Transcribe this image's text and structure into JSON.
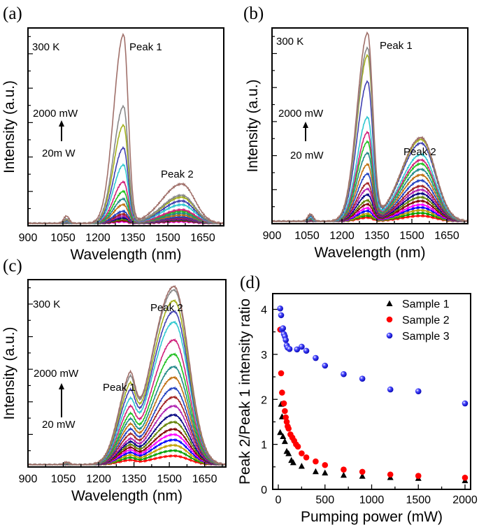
{
  "panels": [
    {
      "label": "(a)",
      "xlabel": "Wavelength (nm)",
      "ylabel": "Intensity (a.u.)",
      "xlim": [
        900,
        1740
      ],
      "ylim": [
        0,
        1.05
      ],
      "xticks": [
        "900",
        "1050",
        "1200",
        "1350",
        "1500",
        "1650"
      ],
      "annotations": {
        "temp": "300 K",
        "peak1": "Peak 1",
        "peak2": "Peak 2",
        "power_high": "2000 mW",
        "power_low": "20m W"
      },
      "peak1_nm": 1310,
      "peak2_nm": 1560,
      "curves_peak1": [
        1.0,
        0.62,
        0.52,
        0.4,
        0.31,
        0.22,
        0.17,
        0.13,
        0.1,
        0.065,
        0.05,
        0.04,
        0.03,
        0.022,
        0.015,
        0.01
      ],
      "curves_peak2": [
        0.21,
        0.15,
        0.14,
        0.12,
        0.1,
        0.073,
        0.065,
        0.055,
        0.045,
        0.035,
        0.03,
        0.026,
        0.022,
        0.018,
        0.014,
        0.01
      ]
    },
    {
      "label": "(b)",
      "xlabel": "Wavelength (nm)",
      "ylabel": "Intensity (a.u.)",
      "xlim": [
        900,
        1740
      ],
      "ylim": [
        0,
        1.05
      ],
      "xticks": [
        "900",
        "1050",
        "1200",
        "1350",
        "1500",
        "1650"
      ],
      "annotations": {
        "temp": "300 K",
        "peak1": "Peak 1",
        "peak2": "Peak 2",
        "power_high": "2000 mW",
        "power_low": "20 mW"
      },
      "peak1_nm": 1310,
      "peak2_nm": 1540,
      "curves_peak1": [
        1.0,
        0.92,
        0.88,
        0.74,
        0.55,
        0.47,
        0.42,
        0.36,
        0.3,
        0.25,
        0.2,
        0.17,
        0.14,
        0.11,
        0.09,
        0.07,
        0.055,
        0.04,
        0.03,
        0.02
      ],
      "curves_peak2": [
        0.45,
        0.45,
        0.44,
        0.42,
        0.36,
        0.33,
        0.31,
        0.28,
        0.25,
        0.22,
        0.19,
        0.17,
        0.15,
        0.13,
        0.11,
        0.09,
        0.075,
        0.06,
        0.045,
        0.03
      ]
    },
    {
      "label": "(c)",
      "xlabel": "Wavelength (nm)",
      "ylabel": "Intensity (a.u.)",
      "xlim": [
        900,
        1740
      ],
      "ylim": [
        0,
        1.05
      ],
      "xticks": [
        "900",
        "1050",
        "1200",
        "1350",
        "1500",
        "1650"
      ],
      "annotations": {
        "temp": "300 K",
        "peak1": "Peak 1",
        "peak2": "Peak 2",
        "power_high": "2000 mW",
        "power_low": "20 mW"
      },
      "peak1_nm": 1330,
      "peak2_nm": 1520,
      "curves_peak1": [
        0.38,
        0.36,
        0.33,
        0.3,
        0.26,
        0.23,
        0.2,
        0.18,
        0.16,
        0.14,
        0.12,
        0.1,
        0.09,
        0.08,
        0.07,
        0.06,
        0.05,
        0.04,
        0.03,
        0.02
      ],
      "curves_peak2": [
        1.0,
        0.98,
        0.92,
        0.86,
        0.8,
        0.7,
        0.62,
        0.55,
        0.49,
        0.43,
        0.38,
        0.33,
        0.28,
        0.24,
        0.2,
        0.17,
        0.14,
        0.11,
        0.08,
        0.05
      ]
    }
  ],
  "chart_data": {
    "type": "scatter",
    "label": "(d)",
    "xlabel": "Pumping power (mW)",
    "ylabel": "Peak 2/Peak 1 intensity ratio",
    "xlim": [
      -60,
      2060
    ],
    "ylim": [
      0,
      4.35
    ],
    "xticks": [
      "0",
      "500",
      "1000",
      "1500",
      "2000"
    ],
    "yticks": [
      "0",
      "1",
      "2",
      "3",
      "4"
    ],
    "legend": "top-right",
    "series": [
      {
        "name": "Sample 1",
        "marker": "triangle",
        "color": "#000000",
        "x": [
          20,
          30,
          40,
          50,
          70,
          90,
          110,
          140,
          160,
          250,
          400,
          500,
          700,
          900,
          1200,
          1500,
          2000
        ],
        "y": [
          1.27,
          1.9,
          1.62,
          1.18,
          1.07,
          0.85,
          0.8,
          0.65,
          0.6,
          0.52,
          0.4,
          0.37,
          0.32,
          0.3,
          0.27,
          0.25,
          0.2
        ]
      },
      {
        "name": "Sample 2",
        "marker": "circle",
        "color": "#ff0000",
        "x": [
          20,
          30,
          40,
          60,
          70,
          80,
          90,
          100,
          110,
          130,
          150,
          170,
          190,
          210,
          250,
          300,
          400,
          500,
          700,
          900,
          1200,
          1500,
          2000
        ],
        "y": [
          3.55,
          2.58,
          2.15,
          1.91,
          1.74,
          1.6,
          1.5,
          1.4,
          1.35,
          1.22,
          1.15,
          1.08,
          1.0,
          0.95,
          0.8,
          0.71,
          0.62,
          0.54,
          0.44,
          0.39,
          0.33,
          0.3,
          0.26
        ]
      },
      {
        "name": "Sample 3",
        "marker": "sphere",
        "color": "#1a1aff",
        "x": [
          20,
          30,
          40,
          50,
          60,
          70,
          80,
          90,
          100,
          120,
          200,
          250,
          300,
          400,
          500,
          700,
          900,
          1200,
          1500,
          2000
        ],
        "y": [
          4.02,
          3.87,
          3.55,
          3.58,
          3.45,
          3.4,
          3.32,
          3.2,
          3.15,
          3.12,
          3.11,
          3.17,
          3.08,
          2.92,
          2.75,
          2.56,
          2.46,
          2.22,
          2.18,
          1.91
        ]
      }
    ]
  },
  "colors": [
    "#a0706a",
    "#888888",
    "#a4b01c",
    "#4040b0",
    "#30c8d0",
    "#d0207a",
    "#20c020",
    "#208888",
    "#c07010",
    "#2040c0",
    "#a02020",
    "#b020b0",
    "#000080",
    "#608000",
    "#800000",
    "#ff00ff",
    "#0000ff",
    "#c0a000",
    "#00a000",
    "#ff0000"
  ]
}
